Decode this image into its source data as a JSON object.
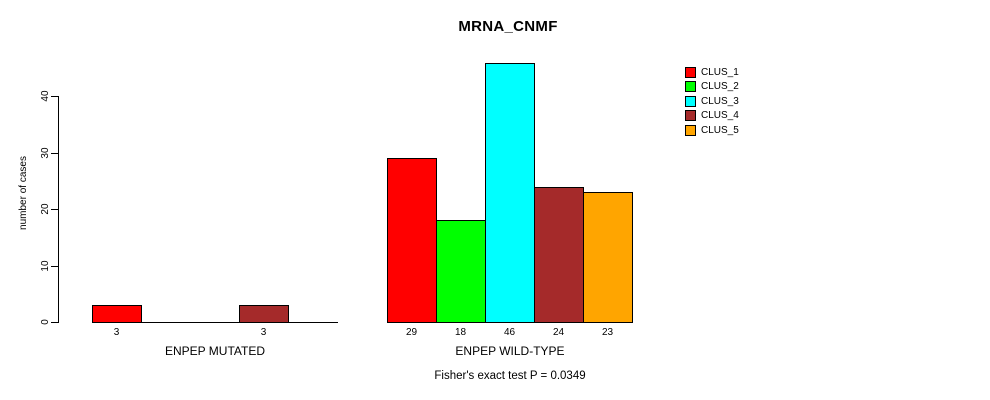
{
  "chart_data": {
    "type": "bar",
    "title": "MRNA_CNMF",
    "ylabel": "number of cases",
    "xlabel": "",
    "ylim": [
      0,
      46
    ],
    "yticks": [
      0,
      10,
      20,
      30,
      40
    ],
    "grid": false,
    "legend_position": "top-right",
    "value_labels": "shown below each nonzero bar",
    "categories": [
      "ENPEP MUTATED",
      "ENPEP WILD-TYPE"
    ],
    "series": [
      {
        "name": "CLUS_1",
        "color": "#FF0000",
        "values": [
          3,
          29
        ]
      },
      {
        "name": "CLUS_2",
        "color": "#00FF00",
        "values": [
          0,
          18
        ]
      },
      {
        "name": "CLUS_3",
        "color": "#00FFFF",
        "values": [
          0,
          46
        ]
      },
      {
        "name": "CLUS_4",
        "color": "#A52A2A",
        "values": [
          3,
          24
        ]
      },
      {
        "name": "CLUS_5",
        "color": "#FFA500",
        "values": [
          0,
          23
        ]
      }
    ],
    "annotation": "Fisher's exact test P = 0.0349"
  }
}
